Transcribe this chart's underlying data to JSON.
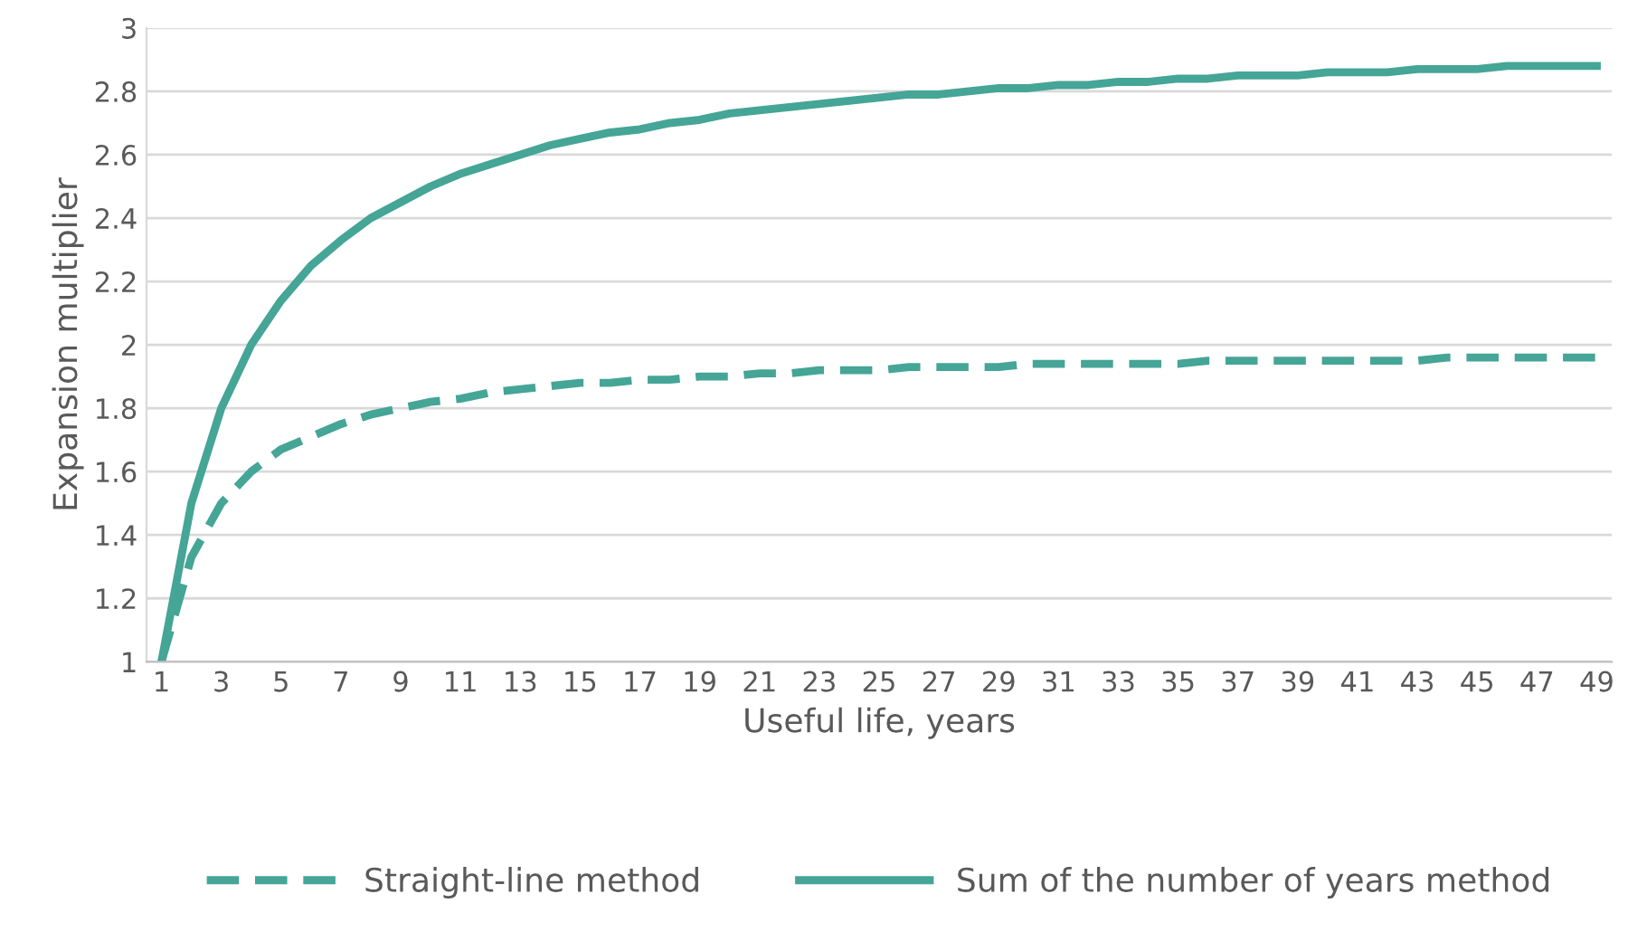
{
  "chart_data": {
    "type": "line",
    "xlabel": "Useful life, years",
    "ylabel": "Expansion multiplier",
    "categories": [
      "1",
      null,
      "3",
      null,
      "5",
      null,
      "7",
      null,
      "9",
      null,
      "11",
      null,
      "13",
      null,
      "15",
      null,
      "17",
      null,
      "19",
      null,
      "21",
      null,
      "23",
      null,
      "25",
      null,
      "27",
      null,
      "29",
      null,
      "31",
      null,
      "33",
      null,
      "35",
      null,
      "37",
      null,
      "39",
      null,
      "41",
      null,
      "43",
      null,
      "45",
      null,
      "47",
      null,
      "49"
    ],
    "series": [
      {
        "name": "Straight-line method",
        "color": "#45a596",
        "line_style": "dashed",
        "values": [
          1.0,
          1.33,
          1.5,
          1.6,
          1.67,
          1.71,
          1.75,
          1.78,
          1.8,
          1.82,
          1.83,
          1.85,
          1.86,
          1.87,
          1.88,
          1.88,
          1.89,
          1.89,
          1.9,
          1.9,
          1.91,
          1.91,
          1.92,
          1.92,
          1.92,
          1.93,
          1.93,
          1.93,
          1.93,
          1.94,
          1.94,
          1.94,
          1.94,
          1.94,
          1.94,
          1.95,
          1.95,
          1.95,
          1.95,
          1.95,
          1.95,
          1.95,
          1.95,
          1.96,
          1.96,
          1.96,
          1.96,
          1.96,
          1.96
        ]
      },
      {
        "name": "Sum of the number of years method",
        "color": "#45a596",
        "line_style": "solid",
        "values": [
          1,
          1.5,
          1.8,
          2,
          2.14,
          2.25,
          2.33,
          2.4,
          2.45,
          2.5,
          2.54,
          2.57,
          2.6,
          2.63,
          2.65,
          2.67,
          2.68,
          2.7,
          2.71,
          2.73,
          2.74,
          2.75,
          2.76,
          2.77,
          2.78,
          2.79,
          2.79,
          2.8,
          2.81,
          2.81,
          2.82,
          2.82,
          2.83,
          2.83,
          2.84,
          2.84,
          2.85,
          2.85,
          2.85,
          2.86,
          2.86,
          2.86,
          2.87,
          2.87,
          2.87,
          2.88,
          2.88,
          2.88,
          2.88
        ]
      }
    ],
    "ylim": [
      1,
      3
    ],
    "yticks": [
      1,
      1.2,
      1.4,
      1.6,
      1.8,
      2,
      2.2,
      2.4,
      2.6,
      2.8,
      3
    ],
    "grid": "y",
    "legend": "bottom",
    "marker": "none"
  }
}
